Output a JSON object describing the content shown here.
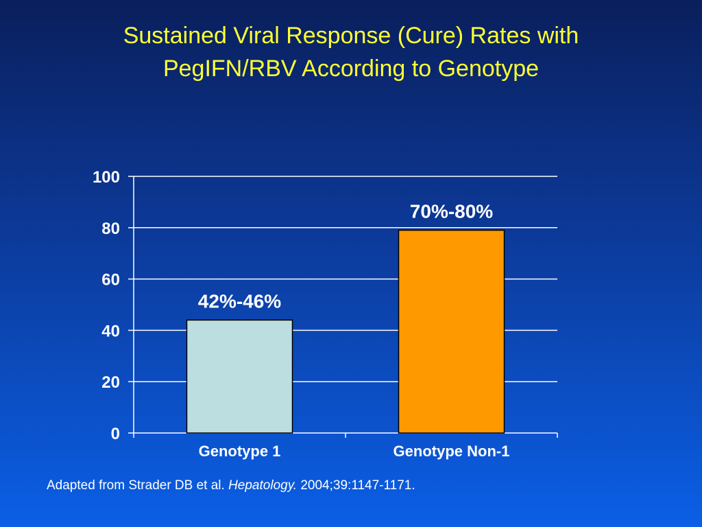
{
  "slide": {
    "title_line1": "Sustained Viral Response (Cure) Rates with",
    "title_line2": "PegIFN/RBV According to Genotype",
    "citation": {
      "prefix": "Adapted from Strader DB et al.",
      "journal": "Hepatology.",
      "suffix": "2004;39:1147-1171."
    }
  },
  "colors": {
    "title": "#ffff33",
    "bar_genotype_1": "#bcdee0",
    "bar_genotype_non1": "#ff9900",
    "gridline": "#ffffff",
    "text": "#ffffff"
  },
  "chart_data": {
    "type": "bar",
    "categories": [
      "Genotype 1",
      "Genotype Non-1"
    ],
    "values": [
      44,
      79
    ],
    "data_labels": [
      "42%-46%",
      "70%-80%"
    ],
    "ylim": [
      0,
      100
    ],
    "yticks": [
      0,
      20,
      40,
      60,
      80,
      100
    ],
    "grid": true,
    "xlabel": "",
    "ylabel": ""
  }
}
